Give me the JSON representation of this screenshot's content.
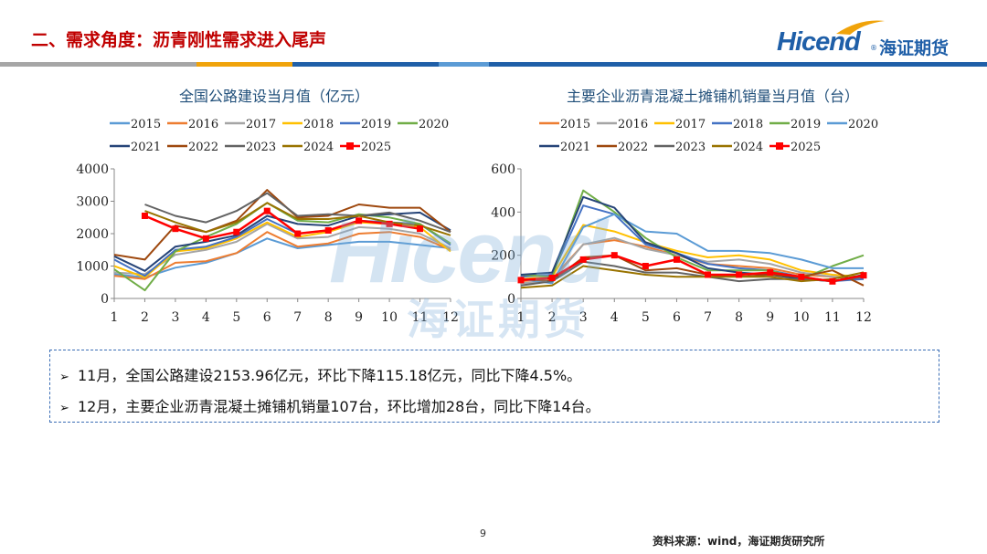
{
  "slide_title": "二、需求角度：沥青刚性需求进入尾声",
  "logo": {
    "en": "Hicend",
    "cn": "海证期货",
    "reg": "®"
  },
  "watermark": {
    "en": "Hicend",
    "cn": "海证期货"
  },
  "colors": {
    "title": "#c00000",
    "brand": "#1f5fa8",
    "stripe_gray": "#a6a6a6",
    "stripe_orange": "#f0a30a",
    "stripe_blue": "#1f5fa8",
    "stripe_light": "#5b9bd5"
  },
  "notes": [
    "11月，全国公路建设2153.96亿元，环比下降115.18亿元，同比下降4.5%。",
    "12月，主要企业沥青混凝土摊铺机销量107台，环比增加28台，同比下降14台。"
  ],
  "note_bullet": "➢",
  "page_number": "9",
  "source": "资料来源：wind，海证期货研究所",
  "chart_data": [
    {
      "type": "line",
      "title": "全国公路建设当月值（亿元）",
      "categories": [
        "1",
        "2",
        "3",
        "4",
        "5",
        "6",
        "7",
        "8",
        "9",
        "10",
        "11",
        "12"
      ],
      "ylim": [
        0,
        4000
      ],
      "yticks": [
        "0",
        "1000",
        "2000",
        "3000",
        "4000"
      ],
      "legend_placement": "top",
      "series": [
        {
          "name": "2015",
          "color": "#5b9bd5",
          "marker": false,
          "values": [
            750,
            650,
            950,
            1100,
            1400,
            1850,
            1550,
            1650,
            1750,
            1750,
            1650,
            1550
          ]
        },
        {
          "name": "2016",
          "color": "#ed7d31",
          "marker": false,
          "values": [
            700,
            600,
            1100,
            1150,
            1400,
            2050,
            1600,
            1700,
            2000,
            2050,
            1900,
            1500
          ]
        },
        {
          "name": "2017",
          "color": "#a5a5a5",
          "marker": false,
          "values": [
            800,
            750,
            1350,
            1500,
            1750,
            2300,
            1850,
            1900,
            2200,
            2150,
            2000,
            1550
          ]
        },
        {
          "name": "2018",
          "color": "#ffc000",
          "marker": false,
          "values": [
            1000,
            650,
            1450,
            1550,
            1850,
            2350,
            1900,
            2050,
            2350,
            2300,
            2200,
            1450
          ]
        },
        {
          "name": "2019",
          "color": "#4472c4",
          "marker": false,
          "values": [
            1200,
            700,
            1500,
            1600,
            1900,
            2450,
            2000,
            2100,
            2400,
            2350,
            2300,
            1650
          ]
        },
        {
          "name": "2020",
          "color": "#70ad47",
          "marker": false,
          "values": [
            900,
            250,
            1450,
            1900,
            2300,
            2950,
            2400,
            2350,
            2600,
            2500,
            2300,
            1700
          ]
        },
        {
          "name": "2021",
          "color": "#264478",
          "marker": false,
          "values": [
            1300,
            850,
            1600,
            1750,
            1950,
            2550,
            2300,
            2250,
            2550,
            2600,
            2650,
            2100
          ]
        },
        {
          "name": "2022",
          "color": "#9e480e",
          "marker": false,
          "values": [
            1350,
            1200,
            2250,
            2050,
            2400,
            3350,
            2500,
            2550,
            2900,
            2800,
            2800,
            2050
          ]
        },
        {
          "name": "2023",
          "color": "#636363",
          "marker": false,
          "values": [
            null,
            2900,
            2550,
            2350,
            2700,
            3250,
            2550,
            2600,
            2550,
            2650,
            2400,
            2050
          ]
        },
        {
          "name": "2024",
          "color": "#997300",
          "marker": false,
          "values": [
            null,
            2700,
            2350,
            2050,
            2350,
            2950,
            2450,
            2450,
            2550,
            2350,
            2250,
            1950
          ]
        },
        {
          "name": "2025",
          "color": "#ff0000",
          "marker": true,
          "values": [
            null,
            2550,
            2150,
            1850,
            2050,
            2700,
            2000,
            2100,
            2400,
            2300,
            2150,
            null
          ]
        }
      ]
    },
    {
      "type": "line",
      "title": "主要企业沥青混凝土摊铺机销量当月值（台）",
      "categories": [
        "1",
        "2",
        "3",
        "4",
        "5",
        "6",
        "7",
        "8",
        "9",
        "10",
        "11",
        "12"
      ],
      "ylim": [
        0,
        600
      ],
      "yticks": [
        "0",
        "200",
        "400",
        "600"
      ],
      "legend_placement": "top",
      "series": [
        {
          "name": "2015",
          "color": "#ed7d31",
          "marker": false,
          "values": [
            80,
            90,
            250,
            270,
            240,
            200,
            160,
            150,
            140,
            110,
            100,
            90
          ]
        },
        {
          "name": "2016",
          "color": "#a5a5a5",
          "marker": false,
          "values": [
            70,
            80,
            250,
            280,
            230,
            200,
            170,
            180,
            160,
            120,
            100,
            100
          ]
        },
        {
          "name": "2017",
          "color": "#ffc000",
          "marker": false,
          "values": [
            90,
            100,
            340,
            310,
            260,
            220,
            190,
            200,
            180,
            130,
            110,
            100
          ]
        },
        {
          "name": "2018",
          "color": "#4472c4",
          "marker": false,
          "values": [
            100,
            110,
            430,
            390,
            250,
            210,
            160,
            140,
            130,
            100,
            80,
            90
          ]
        },
        {
          "name": "2019",
          "color": "#70ad47",
          "marker": false,
          "values": [
            110,
            100,
            500,
            400,
            280,
            190,
            130,
            130,
            130,
            90,
            150,
            200
          ]
        },
        {
          "name": "2020",
          "color": "#5b9bd5",
          "marker": false,
          "values": [
            90,
            70,
            330,
            390,
            310,
            300,
            220,
            220,
            210,
            180,
            140,
            140
          ]
        },
        {
          "name": "2021",
          "color": "#264478",
          "marker": false,
          "values": [
            110,
            120,
            470,
            420,
            260,
            210,
            140,
            120,
            110,
            90,
            80,
            110
          ]
        },
        {
          "name": "2022",
          "color": "#9e480e",
          "marker": false,
          "values": [
            90,
            80,
            190,
            200,
            130,
            140,
            110,
            100,
            110,
            100,
            130,
            60
          ]
        },
        {
          "name": "2023",
          "color": "#636363",
          "marker": false,
          "values": [
            60,
            80,
            170,
            150,
            120,
            120,
            100,
            80,
            90,
            90,
            80,
            100
          ]
        },
        {
          "name": "2024",
          "color": "#997300",
          "marker": false,
          "values": [
            50,
            60,
            150,
            130,
            110,
            100,
            100,
            100,
            100,
            80,
            90,
            121
          ]
        },
        {
          "name": "2025",
          "color": "#ff0000",
          "marker": true,
          "values": [
            85,
            95,
            180,
            200,
            150,
            180,
            110,
            110,
            120,
            100,
            79,
            107
          ]
        }
      ]
    }
  ]
}
